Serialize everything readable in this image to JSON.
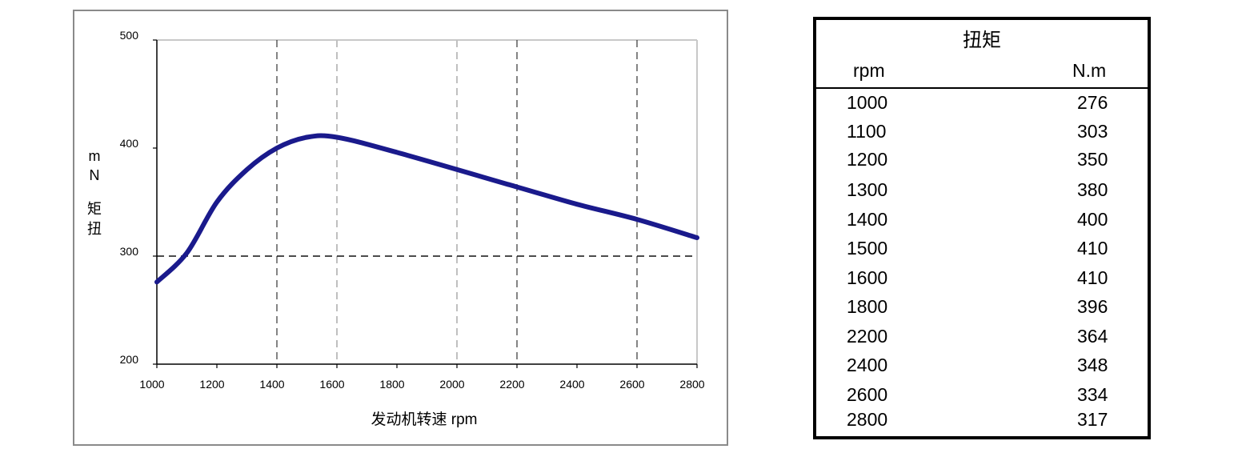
{
  "chart_data": {
    "type": "line",
    "xlabel": "发动机转速  rpm",
    "ylabel": "扭矩Nm",
    "ylabel_parts": [
      "m",
      "N",
      "矩",
      "扭"
    ],
    "xlim": [
      1000,
      2800
    ],
    "ylim": [
      200,
      500
    ],
    "x_ticks": [
      1000,
      1200,
      1400,
      1600,
      1800,
      2000,
      2200,
      2400,
      2600,
      2800
    ],
    "y_ticks": [
      200,
      300,
      400,
      500
    ],
    "grid": {
      "vertical_dashed_dark": [
        1400,
        2200,
        2600
      ],
      "vertical_dashed_light": [
        1600,
        2000
      ],
      "horizontal_dashed": [
        300
      ]
    },
    "line_color": "#1a1a8c",
    "x": [
      1000,
      1100,
      1200,
      1300,
      1400,
      1500,
      1600,
      1800,
      2200,
      2400,
      2600,
      2800
    ],
    "y": [
      276,
      303,
      350,
      380,
      400,
      410,
      410,
      396,
      364,
      348,
      334,
      317
    ]
  },
  "table": {
    "title": "扭矩",
    "headers": [
      "rpm",
      "N.m"
    ],
    "rows": [
      [
        "1000",
        "276"
      ],
      [
        "1100",
        "303"
      ],
      [
        "1200",
        "350"
      ],
      [
        "1300",
        "380"
      ],
      [
        "1400",
        "400"
      ],
      [
        "1500",
        "410"
      ],
      [
        "1600",
        "410"
      ],
      [
        "1800",
        "396"
      ],
      [
        "2200",
        "364"
      ],
      [
        "2400",
        "348"
      ],
      [
        "2600",
        "334"
      ],
      [
        "2800",
        "317"
      ]
    ]
  }
}
